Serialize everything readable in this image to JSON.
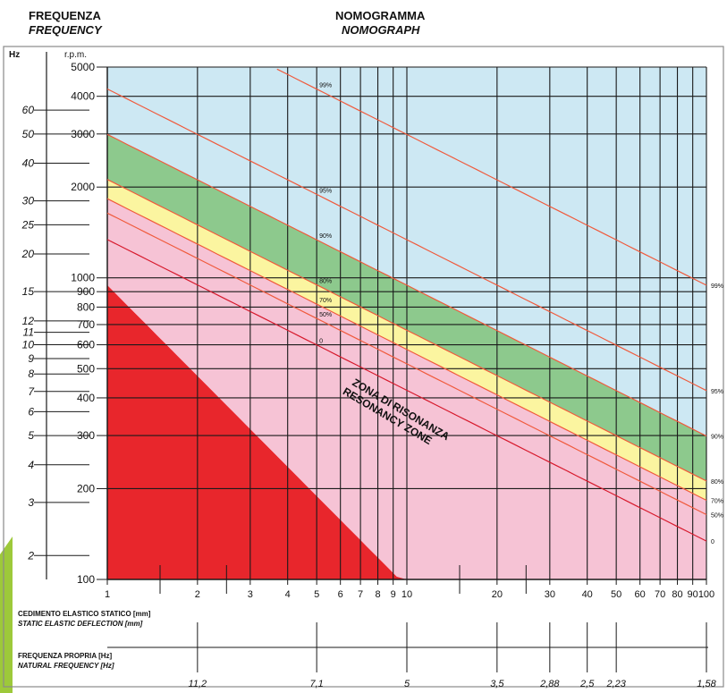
{
  "header": {
    "left_title": "FREQUENZA",
    "left_subtitle": "FREQUENCY",
    "center_title": "NOMOGRAMMA",
    "center_subtitle": "NOMOGRAPH"
  },
  "axes": {
    "hz_unit": "Hz",
    "rpm_unit": "r.p.m.",
    "deflection_label_it": "CEDIMENTO ELASTICO STATICO [mm]",
    "deflection_label_en": "STATIC ELASTIC DEFLECTION [mm]",
    "natural_freq_label_it": "FREQUENZA PROPRIA [Hz]",
    "natural_freq_label_en": "NATURAL FREQUENCY [Hz]"
  },
  "zone_label": {
    "line1": "ZONA DI RISONANZA",
    "line2": "RESONANCY ZONE"
  },
  "colors": {
    "red_zone": "#e8262c",
    "pink": "#f6c3d5",
    "yellow": "#fbf5a0",
    "green": "#8dc98d",
    "light_blue": "#cde8f3",
    "accent_line": "#f05a3c",
    "left_strip": "#9dc93a"
  },
  "chart_data": {
    "type": "line",
    "x_scale": "log",
    "y_scale": "log",
    "xlim": [
      1,
      100
    ],
    "ylim": [
      100,
      5000
    ],
    "x_ticks": [
      "1",
      "2",
      "3",
      "4",
      "5",
      "6",
      "7",
      "8",
      "9",
      "10",
      "20",
      "30",
      "40",
      "50",
      "60",
      "70",
      "80",
      "90",
      "100"
    ],
    "rpm_ticks": [
      "5000",
      "4000",
      "3000",
      "2000",
      "1000",
      "900",
      "800",
      "700",
      "600",
      "500",
      "400",
      "300",
      "200",
      "100"
    ],
    "hz_ticks": [
      "60",
      "50",
      "40",
      "30",
      "25",
      "20",
      "15",
      "12",
      "11",
      "10",
      "9",
      "8",
      "7",
      "6",
      "5",
      "4",
      "3",
      "2"
    ],
    "natural_frequency_ticks": [
      {
        "deflection": 2,
        "label": "11,2"
      },
      {
        "deflection": 5,
        "label": "7,1"
      },
      {
        "deflection": 10,
        "label": "5"
      },
      {
        "deflection": 20,
        "label": "3,5"
      },
      {
        "deflection": 30,
        "label": "2,88"
      },
      {
        "deflection": 40,
        "label": "2,5"
      },
      {
        "deflection": 50,
        "label": "2,23"
      },
      {
        "deflection": 100,
        "label": "1,58"
      }
    ],
    "resonance_rpm_at_1mm": 946,
    "series": [
      {
        "name": "0",
        "label_at": 5,
        "values": [
          {
            "x": 1,
            "y": 1340
          },
          {
            "x": 100,
            "y": 134
          }
        ]
      },
      {
        "name": "50%",
        "label_at": 5,
        "values": [
          {
            "x": 1,
            "y": 1640
          },
          {
            "x": 100,
            "y": 164
          }
        ]
      },
      {
        "name": "70%",
        "label_at": 5,
        "values": [
          {
            "x": 1,
            "y": 1830
          },
          {
            "x": 100,
            "y": 183
          }
        ]
      },
      {
        "name": "80%",
        "label_at": 5,
        "values": [
          {
            "x": 1,
            "y": 2120
          },
          {
            "x": 100,
            "y": 212
          }
        ]
      },
      {
        "name": "90%",
        "label_at": 5,
        "values": [
          {
            "x": 1,
            "y": 2990
          },
          {
            "x": 100,
            "y": 299
          }
        ]
      },
      {
        "name": "95%",
        "label_at": 5,
        "values": [
          {
            "x": 1,
            "y": 4230
          },
          {
            "x": 100,
            "y": 423
          }
        ]
      },
      {
        "name": "99%",
        "label_at": 5,
        "values": [
          {
            "x": 1,
            "y": 9450
          },
          {
            "x": 100,
            "y": 945
          }
        ]
      }
    ]
  }
}
